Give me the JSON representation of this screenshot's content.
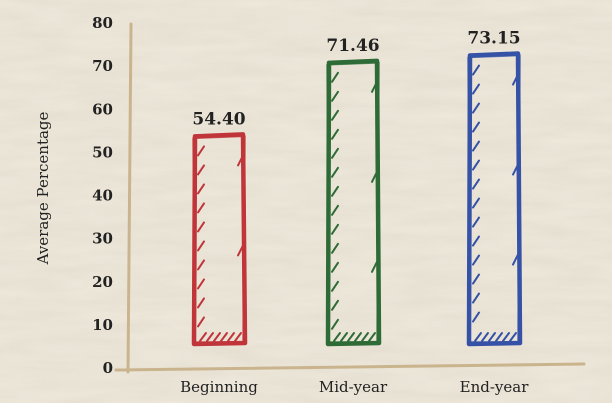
{
  "chart_data": {
    "type": "bar",
    "categories": [
      "Beginning",
      "Mid-year",
      "End-year"
    ],
    "values": [
      54.4,
      71.46,
      73.15
    ],
    "value_labels": [
      "54.40",
      "71.46",
      "73.15"
    ],
    "colors": [
      "#c0353a",
      "#2e6b36",
      "#3552a6"
    ],
    "title": "",
    "xlabel": "",
    "ylabel": "Average Percentage",
    "ylim": [
      0,
      80
    ],
    "yticks": [
      "0",
      "10",
      "20",
      "30",
      "40",
      "50",
      "60",
      "70",
      "80"
    ],
    "grid": false,
    "legend": "none"
  }
}
